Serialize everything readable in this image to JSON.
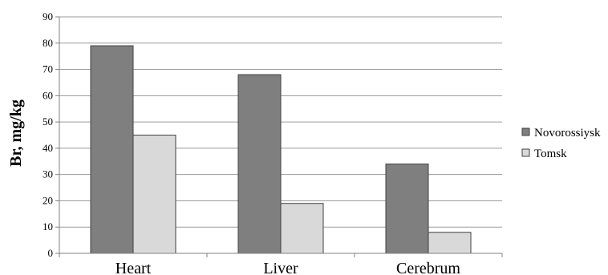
{
  "chart_data": {
    "type": "bar",
    "title": "",
    "xlabel": "",
    "ylabel": "Br, mg/kg",
    "ylim": [
      0,
      90
    ],
    "ytick_step": 10,
    "grid": true,
    "legend_position": "right",
    "categories": [
      "Heart",
      "Liver",
      "Cerebrum"
    ],
    "series": [
      {
        "name": "Novorossiysk",
        "color": "#7f7f7f",
        "values": [
          79,
          68,
          34
        ]
      },
      {
        "name": "Tomsk",
        "color": "#d9d9d9",
        "values": [
          45,
          19,
          8
        ]
      }
    ]
  }
}
